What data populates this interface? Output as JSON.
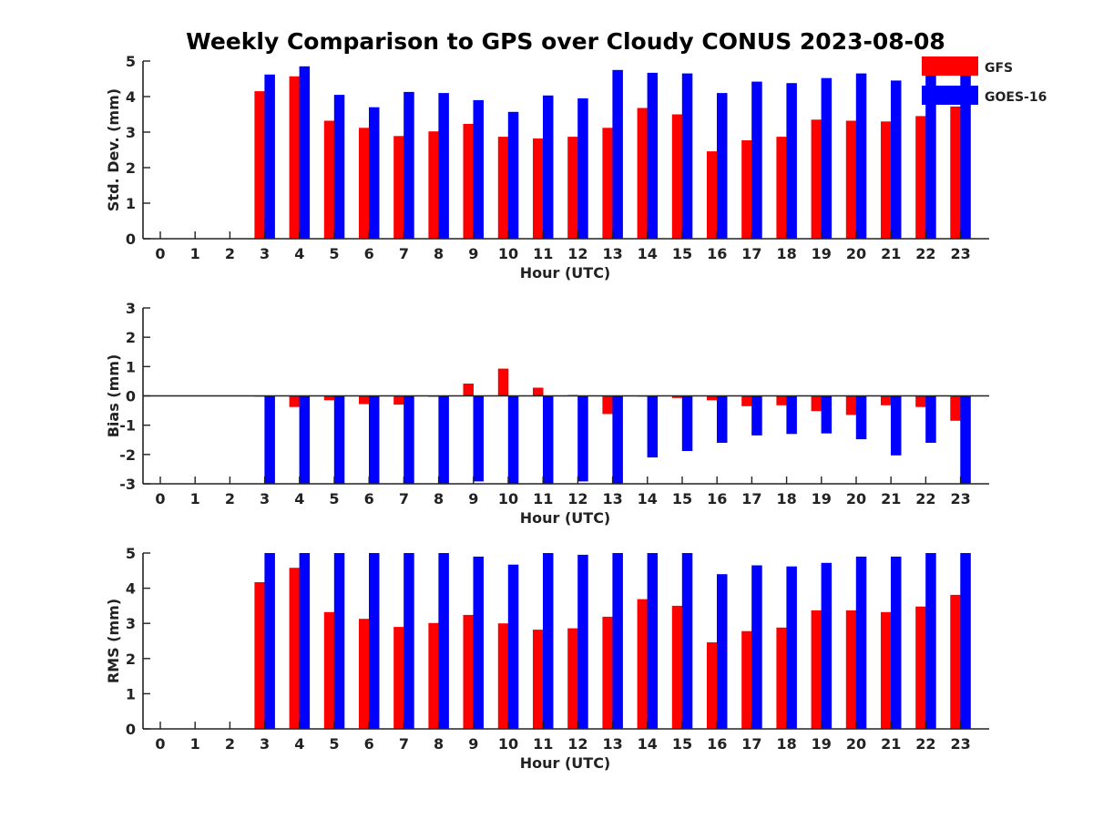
{
  "figure": {
    "title": "Weekly Comparison to GPS over Cloudy CONUS 2023-08-08"
  },
  "legend": {
    "placement": "top-right",
    "items": [
      {
        "label": "GFS",
        "color": "#ff0000"
      },
      {
        "label": "GOES-16",
        "color": "#0000ff"
      }
    ]
  },
  "chart_data": [
    {
      "type": "bar",
      "id": "std",
      "ylabel": "Std. Dev. (mm)",
      "xlabel": "Hour (UTC)",
      "ylim": [
        0,
        5
      ],
      "yticks": [
        0,
        1,
        2,
        3,
        4,
        5
      ],
      "categories": [
        "0",
        "1",
        "2",
        "3",
        "4",
        "5",
        "6",
        "7",
        "8",
        "9",
        "10",
        "11",
        "12",
        "13",
        "14",
        "15",
        "16",
        "17",
        "18",
        "19",
        "20",
        "21",
        "22",
        "23"
      ],
      "series": [
        {
          "name": "GFS",
          "color": "#ff0000",
          "values": [
            null,
            null,
            null,
            4.15,
            4.57,
            3.32,
            3.12,
            2.89,
            3.02,
            3.23,
            2.87,
            2.82,
            2.87,
            3.12,
            3.68,
            3.5,
            2.46,
            2.77,
            2.87,
            3.35,
            3.32,
            3.3,
            3.45,
            3.72
          ]
        },
        {
          "name": "GOES-16",
          "color": "#0000ff",
          "values": [
            null,
            null,
            null,
            4.62,
            4.85,
            4.05,
            3.7,
            4.13,
            4.1,
            3.9,
            3.57,
            4.03,
            3.95,
            4.75,
            4.67,
            4.65,
            4.1,
            4.42,
            4.38,
            4.52,
            4.65,
            4.45,
            4.8,
            4.65
          ]
        }
      ]
    },
    {
      "type": "bar",
      "id": "bias",
      "ylabel": "Bias (mm)",
      "xlabel": "Hour (UTC)",
      "ylim": [
        -3,
        3
      ],
      "yticks": [
        -3,
        -2,
        -1,
        0,
        1,
        2,
        3
      ],
      "categories": [
        "0",
        "1",
        "2",
        "3",
        "4",
        "5",
        "6",
        "7",
        "8",
        "9",
        "10",
        "11",
        "12",
        "13",
        "14",
        "15",
        "16",
        "17",
        "18",
        "19",
        "20",
        "21",
        "22",
        "23"
      ],
      "series": [
        {
          "name": "GFS",
          "color": "#ff0000",
          "values": [
            null,
            null,
            null,
            -0.02,
            -0.38,
            -0.15,
            -0.28,
            -0.3,
            -0.03,
            0.42,
            0.93,
            0.28,
            0.03,
            -0.62,
            -0.02,
            -0.07,
            -0.15,
            -0.35,
            -0.32,
            -0.52,
            -0.65,
            -0.32,
            -0.38,
            -0.85
          ]
        },
        {
          "name": "GOES-16",
          "color": "#0000ff",
          "values": [
            null,
            null,
            null,
            -3.0,
            -3.0,
            -3.0,
            -3.0,
            -3.0,
            -3.0,
            -2.92,
            -3.0,
            -3.0,
            -2.92,
            -3.0,
            -2.1,
            -1.88,
            -1.6,
            -1.35,
            -1.3,
            -1.28,
            -1.48,
            -2.03,
            -1.6,
            -3.0
          ]
        }
      ]
    },
    {
      "type": "bar",
      "id": "rms",
      "ylabel": "RMS (mm)",
      "xlabel": "Hour (UTC)",
      "ylim": [
        0,
        5
      ],
      "yticks": [
        0,
        1,
        2,
        3,
        4,
        5
      ],
      "categories": [
        "0",
        "1",
        "2",
        "3",
        "4",
        "5",
        "6",
        "7",
        "8",
        "9",
        "10",
        "11",
        "12",
        "13",
        "14",
        "15",
        "16",
        "17",
        "18",
        "19",
        "20",
        "21",
        "22",
        "23"
      ],
      "series": [
        {
          "name": "GFS",
          "color": "#ff0000",
          "values": [
            null,
            null,
            null,
            4.17,
            4.58,
            3.32,
            3.13,
            2.9,
            3.01,
            3.24,
            3.0,
            2.82,
            2.86,
            3.19,
            3.69,
            3.5,
            2.46,
            2.78,
            2.88,
            3.37,
            3.37,
            3.32,
            3.48,
            3.81
          ]
        },
        {
          "name": "GOES-16",
          "color": "#0000ff",
          "values": [
            null,
            null,
            null,
            5.0,
            5.0,
            5.0,
            5.0,
            5.0,
            5.0,
            4.9,
            4.67,
            5.0,
            4.95,
            5.0,
            5.0,
            5.0,
            4.4,
            4.65,
            4.62,
            4.72,
            4.9,
            4.9,
            5.0,
            5.0
          ]
        }
      ]
    }
  ]
}
